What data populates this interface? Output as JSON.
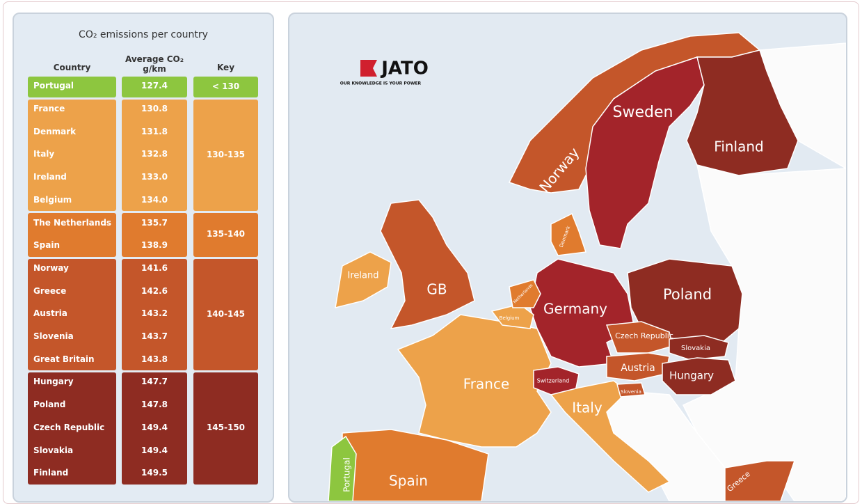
{
  "header": {
    "title": "CO₂ emissions per country"
  },
  "table": {
    "columns": [
      "Country",
      "Average CO₂ g/km",
      "Key"
    ],
    "groups": [
      {
        "key": "< 130",
        "color": "#8dc63f",
        "rows": [
          [
            "Portugal",
            "127.4"
          ]
        ]
      },
      {
        "key": "130-135",
        "color": "#eda24a",
        "rows": [
          [
            "France",
            "130.8"
          ],
          [
            "Denmark",
            "131.8"
          ],
          [
            "Italy",
            "132.8"
          ],
          [
            "Ireland",
            "133.0"
          ],
          [
            "Belgium",
            "134.0"
          ]
        ]
      },
      {
        "key": "135-140",
        "color": "#e07b2e",
        "rows": [
          [
            "The Netherlands",
            "135.7"
          ],
          [
            "Spain",
            "138.9"
          ]
        ]
      },
      {
        "key": "140-145",
        "color": "#c4562a",
        "rows": [
          [
            "Norway",
            "141.6"
          ],
          [
            "Greece",
            "142.6"
          ],
          [
            "Austria",
            "143.2"
          ],
          [
            "Slovenia",
            "143.7"
          ],
          [
            "Great Britain",
            "143.8"
          ]
        ]
      },
      {
        "key": "145-150",
        "color": "#8e2c22",
        "rows": [
          [
            "Hungary",
            "147.7"
          ],
          [
            "Poland",
            "147.8"
          ],
          [
            "Czech Republic",
            "149.4"
          ],
          [
            "Slovakia",
            "149.4"
          ],
          [
            "Finland",
            "149.5"
          ]
        ]
      }
    ]
  },
  "map": {
    "logo": "JATO",
    "tagline": "OUR KNOWLEDGE IS YOUR POWER",
    "labels": [
      "Sweden",
      "Finland",
      "Norway",
      "Ireland",
      "GB",
      "Germany",
      "Poland",
      "Czech Republic",
      "Slovakia",
      "Austria",
      "Hungary",
      "Switzerland",
      "France",
      "Italy",
      "Slovenia",
      "Belgium",
      "Netherlands",
      "Denmark",
      "Spain",
      "Portugal",
      "Greece"
    ]
  }
}
